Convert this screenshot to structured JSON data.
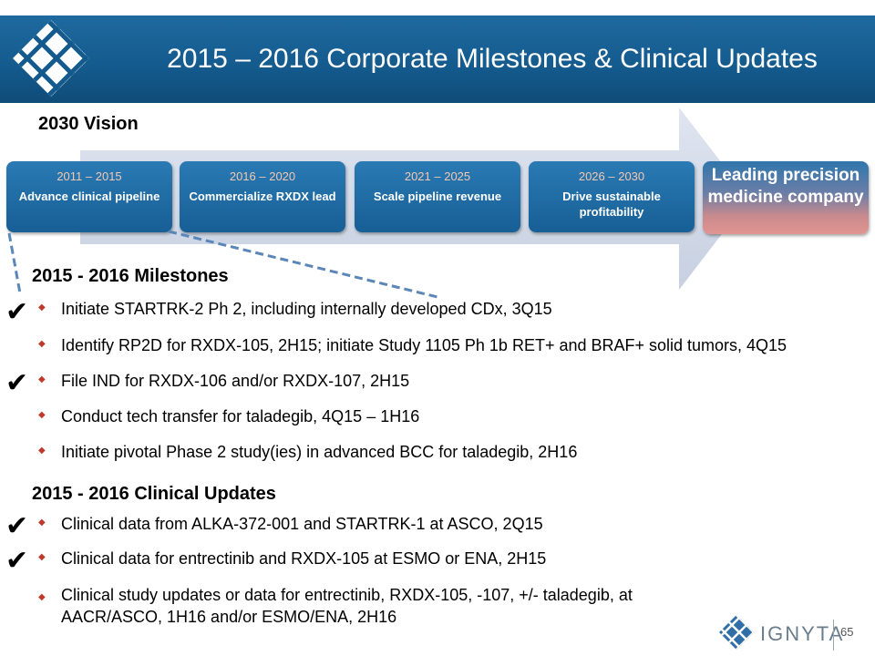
{
  "header": {
    "title": "2015 – 2016 Corporate Milestones & Clinical Updates",
    "logo_icon": "diamond-lattice-logo-icon",
    "band_color": "#145a8d"
  },
  "vision": {
    "label": "2030 Vision",
    "phases": [
      {
        "years": "2011 – 2015",
        "desc": "Advance clinical pipeline"
      },
      {
        "years": "2016 – 2020",
        "desc": "Commercialize RXDX lead"
      },
      {
        "years": "2021 – 2025",
        "desc": "Scale pipeline revenue"
      },
      {
        "years": "2026 – 2030",
        "desc": "Drive sustainable profitability"
      }
    ],
    "goal": "Leading precision medicine company"
  },
  "milestones": {
    "heading": "2015 - 2016 Milestones",
    "items": [
      {
        "text": "Initiate STARTRK-2 Ph 2, including internally developed CDx, 3Q15",
        "checked": true
      },
      {
        "text": "Identify RP2D for RXDX-105, 2H15; initiate Study 1105 Ph 1b RET+ and BRAF+ solid tumors, 4Q15",
        "checked": false
      },
      {
        "text": "File IND for RXDX-106 and/or RXDX-107, 2H15",
        "checked": true
      },
      {
        "text": "Conduct tech transfer for taladegib, 4Q15 – 1H16",
        "checked": false
      },
      {
        "text": "Initiate pivotal Phase 2 study(ies) in advanced BCC for taladegib, 2H16",
        "checked": false
      }
    ]
  },
  "clinical": {
    "heading": "2015 - 2016 Clinical Updates",
    "items": [
      {
        "text": "Clinical data from ALKA-372-001 and STARTRK-1 at ASCO, 2Q15",
        "checked": true
      },
      {
        "text": "Clinical data for entrectinib and RXDX-105 at ESMO or ENA, 2H15",
        "checked": true
      },
      {
        "text_line1": "Clinical study updates or data for entrectinib, RXDX-105, -107, +/- taladegib, at",
        "text_line2": "AACR/ASCO, 1H16 and/or ESMO/ENA, 2H16",
        "checked": false
      }
    ]
  },
  "icons": {
    "check": "checkmark-icon",
    "bullet": "diamond-bullet-icon"
  },
  "footer": {
    "brand": "IGNYTA",
    "page_number": "65"
  },
  "colors": {
    "phase_box": "#1e6aa0",
    "phase_years": "#f4c8b0",
    "arrow": "#d4dceb",
    "bullet": "#c0392b"
  }
}
